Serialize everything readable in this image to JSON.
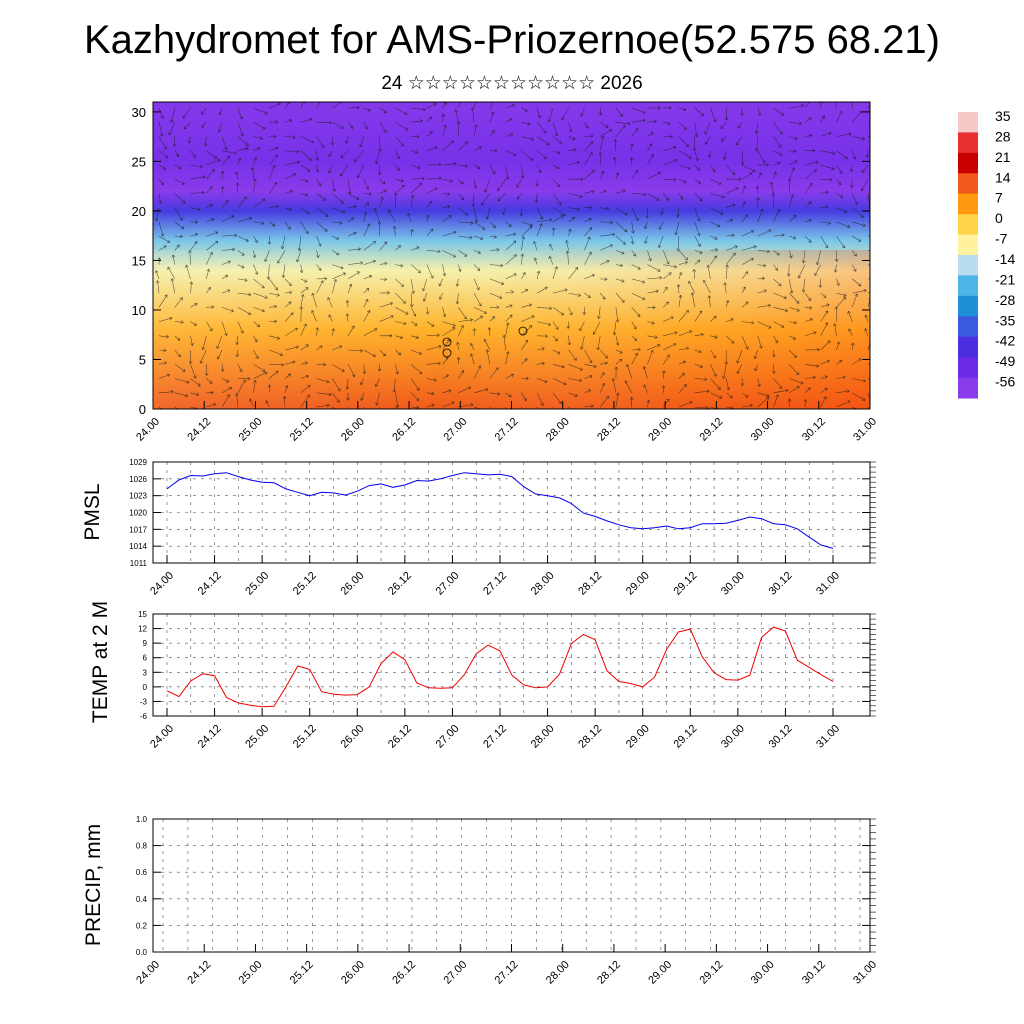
{
  "header": {
    "title": "Kazhydromet for AMS-Priozernoe(52.575 68.21)",
    "subtitle": "24 ☆☆☆☆☆☆☆☆☆☆☆ 2026"
  },
  "time_labels": [
    "24.00",
    "24.12",
    "25.00",
    "25.12",
    "26.00",
    "26.12",
    "27.00",
    "27.12",
    "28.00",
    "28.12",
    "29.00",
    "29.12",
    "30.00",
    "30.12",
    "31.00"
  ],
  "chart_data": [
    {
      "type": "heatmap",
      "name": "cross-section",
      "y_ticks": [
        "0",
        "5",
        "10",
        "15",
        "20",
        "25",
        "30"
      ],
      "ylim": [
        0,
        31
      ],
      "colorbar": {
        "labels": [
          "35",
          "28",
          "21",
          "14",
          "7",
          "0",
          "-7",
          "-14",
          "-21",
          "-28",
          "-35",
          "-42",
          "-49",
          "-56"
        ],
        "colors": [
          "#f7c8c8",
          "#e83030",
          "#c80000",
          "#f05a1a",
          "#ff9a10",
          "#ffd34a",
          "#fff3a0",
          "#b7dced",
          "#4cb6e6",
          "#1f8fd8",
          "#3c5ae0",
          "#4a2ee0",
          "#6a2ae8",
          "#8a3bea"
        ]
      },
      "temperature_profile": [
        {
          "height": 0,
          "value": 14
        },
        {
          "height": 8,
          "value": 4
        },
        {
          "height": 14,
          "value": -8
        },
        {
          "height": 17,
          "value": -18
        },
        {
          "height": 20,
          "value": -40
        },
        {
          "height": 22,
          "value": -60
        },
        {
          "height": 25,
          "value": -52
        },
        {
          "height": 31,
          "value": -55
        }
      ]
    },
    {
      "type": "line",
      "ylabel": "PMSL",
      "y_ticks": [
        "1029",
        "1026",
        "1023",
        "1020",
        "1017",
        "1014",
        "1011"
      ],
      "ylim": [
        1011,
        1029
      ],
      "color": "#0000ee",
      "values": [
        1024.2,
        1025.8,
        1026.6,
        1026.5,
        1026.9,
        1027.1,
        1026.4,
        1025.8,
        1025.4,
        1025.3,
        1024.2,
        1023.6,
        1023.0,
        1023.6,
        1023.5,
        1023.1,
        1023.8,
        1024.8,
        1025.1,
        1024.5,
        1024.9,
        1025.7,
        1025.6,
        1026.0,
        1026.6,
        1027.1,
        1026.9,
        1026.7,
        1026.8,
        1026.4,
        1024.6,
        1023.3,
        1023.0,
        1022.6,
        1021.6,
        1019.9,
        1019.3,
        1018.5,
        1017.8,
        1017.3,
        1017.1,
        1017.3,
        1017.6,
        1017.1,
        1017.3,
        1018.0,
        1018.0,
        1018.1,
        1018.6,
        1019.2,
        1018.9,
        1018.0,
        1017.8,
        1017.1,
        1015.6,
        1014.2,
        1013.6
      ]
    },
    {
      "type": "line",
      "ylabel": "TEMP at 2 M",
      "y_ticks": [
        "15",
        "12",
        "9",
        "6",
        "3",
        "0",
        "-3",
        "-6"
      ],
      "ylim": [
        -6,
        15
      ],
      "color": "#ee0000",
      "values": [
        -0.8,
        -2,
        1.2,
        2.7,
        2.3,
        -2.2,
        -3.3,
        -3.8,
        -4.1,
        -4,
        0,
        4.3,
        3.6,
        -1,
        -1.5,
        -1.7,
        -1.6,
        0,
        4.8,
        7.2,
        5.6,
        0.8,
        -0.2,
        -0.3,
        -0.2,
        2.5,
        6.8,
        8.6,
        7.4,
        2.4,
        0.4,
        -0.2,
        0,
        2.6,
        8.9,
        10.8,
        9.7,
        3.3,
        1.1,
        0.7,
        0,
        2,
        7.7,
        11.3,
        11.9,
        6.2,
        2.9,
        1.5,
        1.4,
        2.4,
        10.2,
        12.3,
        11.5,
        5.5,
        4,
        2.5,
        1.1
      ]
    },
    {
      "type": "bar",
      "ylabel": "PRECIP, mm",
      "y_ticks": [
        "1.0",
        "0.8",
        "0.6",
        "0.4",
        "0.2",
        "0.0"
      ],
      "ylim": [
        0,
        1
      ],
      "values": [
        0,
        0,
        0,
        0,
        0,
        0,
        0,
        0,
        0,
        0,
        0,
        0,
        0,
        0,
        0,
        0,
        0,
        0,
        0,
        0,
        0,
        0,
        0,
        0,
        0,
        0,
        0,
        0,
        0,
        0,
        0,
        0,
        0,
        0,
        0,
        0,
        0,
        0,
        0,
        0,
        0,
        0,
        0,
        0,
        0,
        0,
        0,
        0,
        0,
        0,
        0,
        0,
        0,
        0,
        0,
        0,
        0
      ]
    }
  ]
}
